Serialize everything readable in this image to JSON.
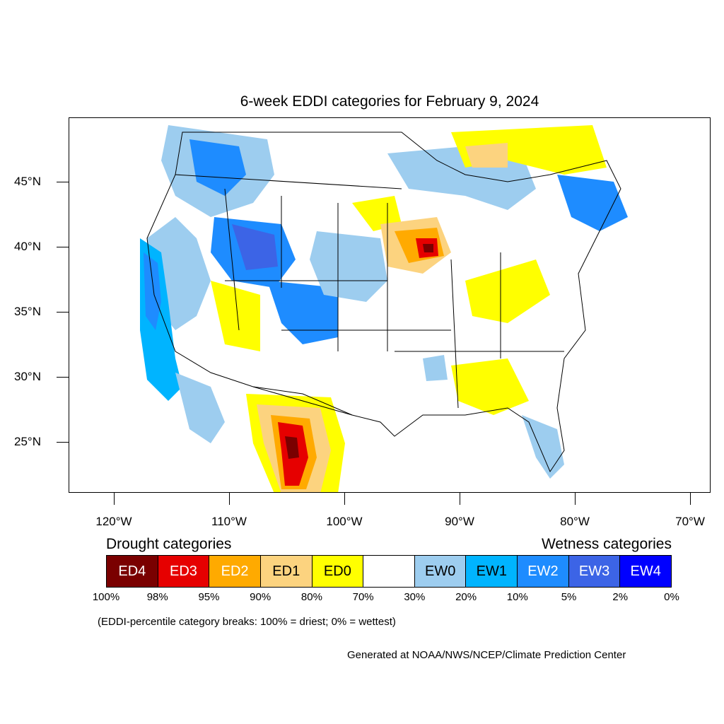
{
  "title": "6-week EDDI categories for February 9, 2024",
  "map": {
    "lat_labels": [
      {
        "lat": 45,
        "label": "45°N"
      },
      {
        "lat": 40,
        "label": "40°N"
      },
      {
        "lat": 35,
        "label": "35°N"
      },
      {
        "lat": 30,
        "label": "30°N"
      },
      {
        "lat": 25,
        "label": "25°N"
      }
    ],
    "lon_labels": [
      {
        "lon": -120,
        "label": "120°W"
      },
      {
        "lon": -110,
        "label": "110°W"
      },
      {
        "lon": -100,
        "label": "100°W"
      },
      {
        "lon": -90,
        "label": "90°W"
      },
      {
        "lon": -80,
        "label": "80°W"
      },
      {
        "lon": -70,
        "label": "70°W"
      }
    ]
  },
  "legend": {
    "drought_heading": "Drought categories",
    "wetness_heading": "Wetness categories",
    "categories": [
      {
        "label": "ED4",
        "color": "#7a0000",
        "text_color": "#ffffff"
      },
      {
        "label": "ED3",
        "color": "#e60000",
        "text_color": "#ffffff"
      },
      {
        "label": "ED2",
        "color": "#ffaa00",
        "text_color": "#ffffff"
      },
      {
        "label": "ED1",
        "color": "#fcd37f",
        "text_color": "#000000"
      },
      {
        "label": "ED0",
        "color": "#ffff00",
        "text_color": "#000000"
      },
      {
        "label": "",
        "color": "#ffffff",
        "text_color": "#000000"
      },
      {
        "label": "EW0",
        "color": "#9dcdef",
        "text_color": "#000000"
      },
      {
        "label": "EW1",
        "color": "#00b4ff",
        "text_color": "#000000"
      },
      {
        "label": "EW2",
        "color": "#1e8cff",
        "text_color": "#ffffff"
      },
      {
        "label": "EW3",
        "color": "#3c64e6",
        "text_color": "#ffffff"
      },
      {
        "label": "EW4",
        "color": "#0000ff",
        "text_color": "#ffffff"
      }
    ],
    "percentiles": [
      "100%",
      "98%",
      "95%",
      "90%",
      "80%",
      "70%",
      "30%",
      "20%",
      "10%",
      "5%",
      "2%",
      "0%"
    ]
  },
  "note": "(EDDI-percentile category breaks: 100% = driest; 0% = wettest)",
  "credit": "Generated at NOAA/NWS/NCEP/Climate Prediction Center"
}
